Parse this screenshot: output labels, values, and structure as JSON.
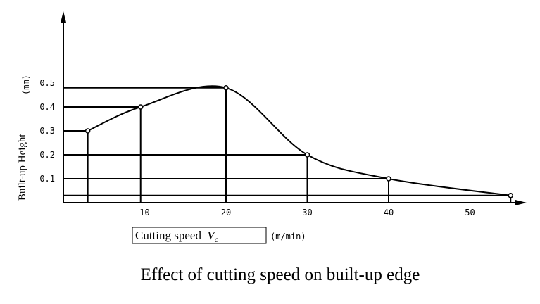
{
  "chart_data": {
    "type": "line",
    "caption": "Effect of cutting speed on built-up edge",
    "xlabel": "Cutting speed",
    "xlabel_symbol": "V",
    "xlabel_subscript": "c",
    "xunit": "(m/min)",
    "ylabel": "Built-up Height",
    "yunit": "(mm)",
    "xticks": [
      "10",
      "20",
      "30",
      "40",
      "50"
    ],
    "yticks": [
      "0.1",
      "0.2",
      "0.3",
      "0.4",
      "0.5"
    ],
    "xlim": [
      0,
      57
    ],
    "ylim": [
      0,
      0.75
    ],
    "grid": false,
    "series": [
      {
        "x": [
          3,
          9.5,
          20,
          30,
          40,
          55
        ],
        "y": [
          0.3,
          0.4,
          0.48,
          0.2,
          0.1,
          0.03
        ]
      }
    ]
  }
}
